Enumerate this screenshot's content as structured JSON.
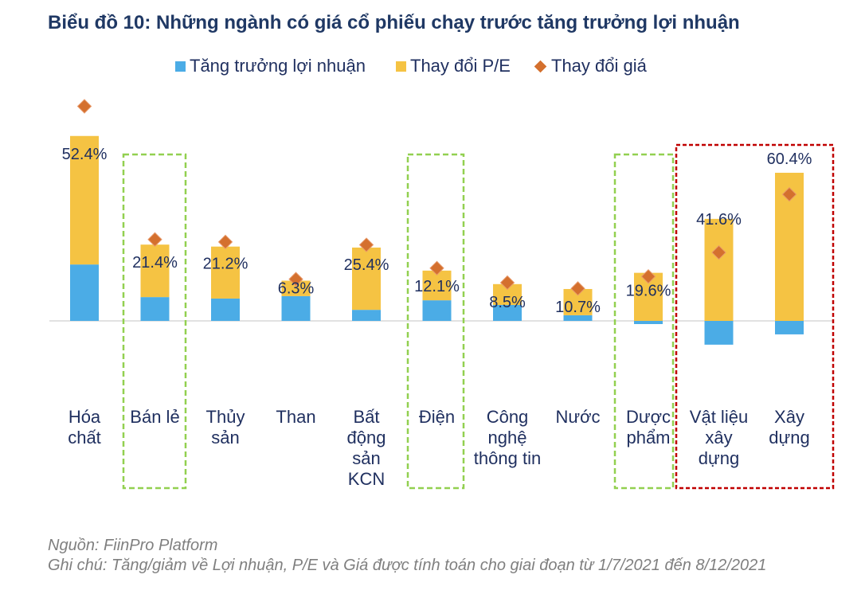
{
  "chart_data": {
    "type": "bar",
    "stacked": true,
    "title": "Biểu đồ 10: Những ngành có giá cổ phiếu chạy trước tăng trưởng lợi nhuận",
    "legend_position": "top",
    "categories": [
      "Hóa\nchất",
      "Bán lẻ",
      "Thủy\nsản",
      "Than",
      "Bất\nđộng\nsản\nKCN",
      "Điện",
      "Công\nnghệ\nthông tin",
      "Nước",
      "Dược\nphẩm",
      "Vật liệu\nxây\ndựng",
      "Xây\ndựng"
    ],
    "series": [
      {
        "name": "Tăng trưởng lợi nhuận",
        "type": "bar",
        "marker": "square",
        "color": "#4BACE6",
        "unit": "%",
        "values": [
          23.0,
          9.7,
          9.1,
          10.1,
          4.5,
          8.4,
          6.5,
          2.3,
          -1.3,
          -9.7,
          -5.5
        ]
      },
      {
        "name": "Thay đổi P/E",
        "type": "bar",
        "marker": "square",
        "color": "#F5C343",
        "unit": "%",
        "values": [
          52.4,
          21.4,
          21.2,
          6.3,
          25.4,
          12.1,
          8.5,
          10.7,
          19.6,
          41.6,
          60.4
        ],
        "data_labels": [
          "52.4%",
          "21.4%",
          "21.2%",
          "6.3%",
          "25.4%",
          "12.1%",
          "8.5%",
          "10.7%",
          "19.6%",
          "41.6%",
          "60.4%"
        ]
      },
      {
        "name": "Thay đổi giá",
        "type": "marker",
        "marker": "diamond",
        "color": "#D4702E",
        "unit": "%",
        "values": [
          87.5,
          33.2,
          32.2,
          17.0,
          31.0,
          21.5,
          15.6,
          13.2,
          18.1,
          27.9,
          51.6
        ]
      }
    ],
    "highlights": [
      {
        "category_indices": [
          1
        ],
        "color": "#92D050",
        "style": "dashed"
      },
      {
        "category_indices": [
          5
        ],
        "color": "#92D050",
        "style": "dashed"
      },
      {
        "category_indices": [
          8
        ],
        "color": "#92D050",
        "style": "dashed"
      },
      {
        "category_indices": [
          9,
          10
        ],
        "color": "#C00000",
        "style": "dashed"
      }
    ]
  },
  "footer": {
    "source": "Nguồn: FiinPro Platform",
    "note": "Ghi chú: Tăng/giảm về Lợi nhuận, P/E và Giá được tính toán cho giai đoạn từ 1/7/2021 đến 8/12/2021"
  }
}
